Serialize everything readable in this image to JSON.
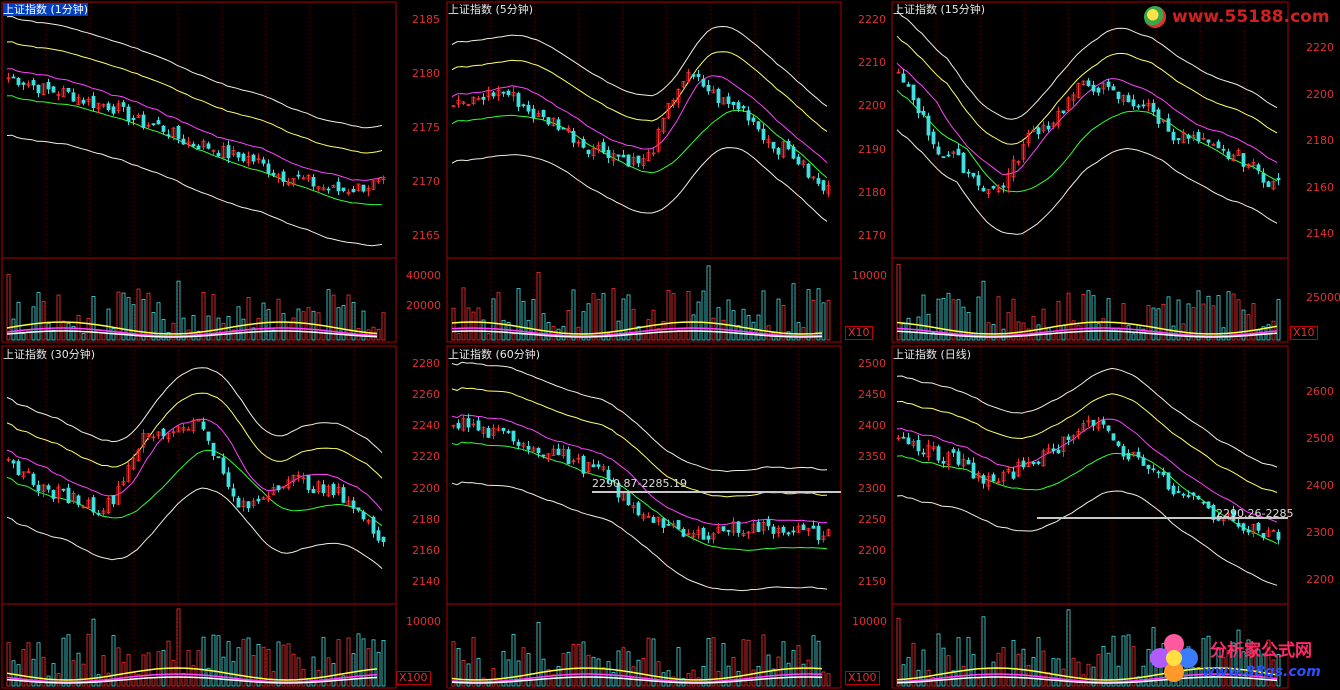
{
  "panels": [
    {
      "id": "p1",
      "title": "上证指数 (1分钟)",
      "selected": true,
      "left_ticks": [],
      "right_ticks": [],
      "vol_left_ticks": [],
      "vol_right_ticks": [],
      "unit": ""
    },
    {
      "id": "p2",
      "title": "上证指数 (5分钟)",
      "selected": false,
      "left_ticks": [
        "2185",
        "2180",
        "2175",
        "2170",
        "2165"
      ],
      "right_ticks": [],
      "vol_left_ticks": [
        "40000",
        "20000"
      ],
      "vol_right_ticks": [],
      "unit": "X10"
    },
    {
      "id": "p3",
      "title": "上证指数 (15分钟)",
      "selected": false,
      "left_ticks": [
        "2220",
        "2210",
        "2200",
        "2190",
        "2180",
        "2170"
      ],
      "right_ticks": [
        "2220",
        "2200",
        "2180",
        "2160",
        "2140"
      ],
      "vol_left_ticks": [
        "10000"
      ],
      "vol_right_ticks": [
        "25000"
      ],
      "unit": "X10"
    },
    {
      "id": "p4",
      "title": "上证指数 (30分钟)",
      "selected": false,
      "left_ticks": [],
      "right_ticks": [],
      "vol_left_ticks": [],
      "vol_right_ticks": [],
      "unit": ""
    },
    {
      "id": "p5",
      "title": "上证指数 (60分钟)",
      "selected": false,
      "left_ticks": [
        "2280",
        "2260",
        "2240",
        "2220",
        "2200",
        "2180",
        "2160",
        "2140"
      ],
      "right_ticks": [],
      "vol_left_ticks": [
        "10000"
      ],
      "vol_right_ticks": [],
      "unit": "X100",
      "price_label": "2290.87-2285.19"
    },
    {
      "id": "p6",
      "title": "上证指数 (日线)",
      "selected": false,
      "left_ticks": [
        "2500",
        "2450",
        "2400",
        "2350",
        "2300",
        "2250",
        "2200",
        "2150"
      ],
      "right_ticks": [
        "2600",
        "2500",
        "2400",
        "2300",
        "2200"
      ],
      "vol_left_ticks": [
        "10000"
      ],
      "vol_right_ticks": [],
      "unit": "X100",
      "price_label": "2290.26-2285"
    }
  ],
  "watermark_top": "www.55188.com",
  "watermark_bottom_title": "分析家公式网",
  "watermark_bottom_url": "www.88gs.com",
  "colors": {
    "up": "#ff3030",
    "down": "#40e0e0",
    "frame": "#b00000",
    "grid": "#7a0000",
    "band_outer": "#f0f0e0",
    "band_mid_up": "#ffff66",
    "ma1": "#ff40ff",
    "ma2": "#30ff30"
  },
  "chart_data": [
    {
      "type": "candlestick",
      "title": "上证指数 (1分钟)",
      "trend": [
        2200,
        2196,
        2192,
        2186,
        2180,
        2176,
        2170,
        2166,
        2168
      ]
    },
    {
      "type": "candlestick",
      "title": "上证指数 (5分钟)",
      "ylim": [
        2163,
        2188
      ],
      "trend": [
        2176,
        2178,
        2174,
        2170,
        2168,
        2180,
        2176,
        2170,
        2164
      ]
    },
    {
      "type": "candlestick",
      "title": "上证指数 (15分钟)",
      "ylim": [
        2160,
        2222
      ],
      "trend": [
        2202,
        2180,
        2170,
        2188,
        2200,
        2195,
        2185,
        2180,
        2172
      ]
    },
    {
      "type": "candlestick",
      "title": "上证指数 (30分钟)",
      "trend": [
        2195,
        2185,
        2180,
        2205,
        2210,
        2180,
        2190,
        2185,
        2170
      ]
    },
    {
      "type": "candlestick",
      "title": "上证指数 (60分钟)",
      "ylim": [
        2135,
        2285
      ],
      "trend": [
        2228,
        2220,
        2210,
        2198,
        2170,
        2155,
        2160,
        2160,
        2155
      ]
    },
    {
      "type": "candlestick",
      "title": "上证指数 (日线)",
      "ylim": [
        2140,
        2500
      ],
      "trend": [
        2370,
        2330,
        2280,
        2330,
        2400,
        2330,
        2250,
        2200,
        2170
      ]
    }
  ]
}
